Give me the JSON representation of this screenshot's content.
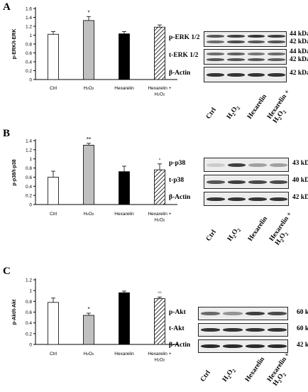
{
  "panels": [
    {
      "letter": "A",
      "chart": {
        "ylabel": "p-ERK/t-ERK",
        "yticks": [
          "0",
          "0.2",
          "0.4",
          "0.6",
          "0.8",
          "1",
          "1.2",
          "1.4",
          "1.6"
        ]
      },
      "blot": {
        "rows": [
          {
            "label": "p-ERK 1/2",
            "kda": [
              "44 kDa",
              "42 kDa"
            ]
          },
          {
            "label": "t-ERK 1/2",
            "kda": [
              "44 kDa",
              "42 kDa"
            ]
          },
          {
            "label": "β-Actin",
            "kda": [
              "42 kDa"
            ]
          }
        ],
        "lanes": [
          "Ctrl",
          "H2O2",
          "Hexarelin",
          "Hexarelin + H2O2"
        ]
      }
    },
    {
      "letter": "B",
      "chart": {
        "ylabel": "p-p38/t-p38",
        "yticks": [
          "0",
          "0.2",
          "0.4",
          "0.6",
          "0.8",
          "1",
          "1.2",
          "1.4"
        ]
      },
      "blot": {
        "rows": [
          {
            "label": "p-p38",
            "kda": [
              "43 kDa"
            ]
          },
          {
            "label": "t-p38",
            "kda": [
              "40 kDa"
            ]
          },
          {
            "label": "β-Actin",
            "kda": [
              "42 kDa"
            ]
          }
        ],
        "lanes": [
          "Ctrl",
          "H2O2",
          "Hexarelin",
          "Hexarelin + H2O2"
        ]
      }
    },
    {
      "letter": "C",
      "chart": {
        "ylabel": "p-Akt/t-Akt",
        "yticks": [
          "0",
          "0.2",
          "0.4",
          "0.6",
          "0.8",
          "1",
          "1.2"
        ]
      },
      "blot": {
        "rows": [
          {
            "label": "p-Akt",
            "kda": [
              "60 kDa"
            ]
          },
          {
            "label": "t-Akt",
            "kda": [
              "60 kDa"
            ]
          },
          {
            "label": "β-Actin",
            "kda": [
              "42 kDa"
            ]
          }
        ],
        "lanes": [
          "Ctrl",
          "H2O2",
          "Hexarelin",
          "Hexarelin + H2O2"
        ]
      }
    }
  ],
  "colors": {
    "ctrl": "#ffffff",
    "h2o2": "#c0c0c0",
    "hexarelin": "#000000",
    "combo_hatch": "#333333"
  },
  "chart_data": [
    {
      "type": "bar",
      "title": "",
      "xlabel": "",
      "ylabel": "p-ERK/t-ERK",
      "ylim": [
        0,
        1.6
      ],
      "categories": [
        "Ctrl",
        "H2O2",
        "Hexarelin",
        "Hexarelin + H2O2"
      ],
      "values": [
        1.02,
        1.33,
        1.03,
        1.18
      ],
      "errors": [
        0.06,
        0.09,
        0.05,
        0.05
      ],
      "annotations": [
        "",
        "*",
        "",
        ""
      ],
      "grid": false
    },
    {
      "type": "bar",
      "title": "",
      "xlabel": "",
      "ylabel": "p-p38/t-p38",
      "ylim": [
        0,
        1.4
      ],
      "categories": [
        "Ctrl",
        "H2O2",
        "Hexarelin",
        "Hexarelin + H2O2"
      ],
      "values": [
        0.6,
        1.3,
        0.72,
        0.76
      ],
      "errors": [
        0.13,
        0.04,
        0.12,
        0.13
      ],
      "annotations": [
        "",
        "**",
        "",
        "°"
      ],
      "grid": false
    },
    {
      "type": "bar",
      "title": "",
      "xlabel": "",
      "ylabel": "p-Akt/t-Akt",
      "ylim": [
        0,
        1.2
      ],
      "categories": [
        "Ctrl",
        "H2O2",
        "Hexarelin",
        "Hexarelin + H2O2"
      ],
      "values": [
        0.78,
        0.54,
        0.96,
        0.85
      ],
      "errors": [
        0.08,
        0.04,
        0.03,
        0.03
      ],
      "annotations": [
        "",
        "*",
        "",
        "°°"
      ],
      "grid": false
    }
  ]
}
